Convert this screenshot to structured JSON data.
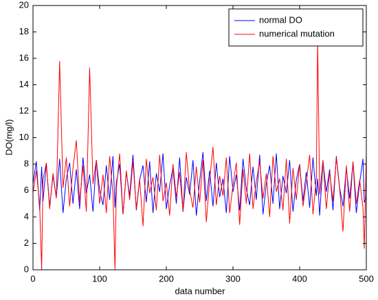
{
  "chart_data": {
    "type": "line",
    "xlabel": "data number",
    "ylabel": "DO(mg/l)",
    "xlim": [
      0,
      500
    ],
    "xticks": [
      0,
      100,
      200,
      300,
      400,
      500
    ],
    "ylim": [
      0,
      20
    ],
    "yticks": [
      0,
      2,
      4,
      6,
      8,
      10,
      12,
      14,
      16,
      18,
      20
    ],
    "legend": "upper right",
    "x": [
      0,
      5,
      10,
      13,
      15,
      20,
      25,
      30,
      35,
      40,
      45,
      50,
      55,
      60,
      65,
      70,
      75,
      80,
      85,
      90,
      95,
      100,
      105,
      110,
      115,
      120,
      123,
      125,
      130,
      135,
      140,
      145,
      150,
      155,
      160,
      165,
      170,
      175,
      180,
      185,
      190,
      195,
      200,
      205,
      210,
      215,
      220,
      225,
      230,
      235,
      240,
      245,
      250,
      255,
      260,
      265,
      270,
      275,
      280,
      285,
      290,
      295,
      300,
      305,
      310,
      315,
      320,
      325,
      330,
      335,
      340,
      345,
      350,
      355,
      360,
      365,
      370,
      375,
      380,
      385,
      390,
      395,
      400,
      405,
      410,
      415,
      420,
      425,
      427,
      430,
      435,
      440,
      445,
      450,
      455,
      460,
      465,
      470,
      475,
      480,
      485,
      490,
      495,
      497,
      500
    ],
    "series": [
      {
        "name": "normal DO",
        "color": "#0000ff",
        "values": [
          6.5,
          8.2,
          4.5,
          7.8,
          5.2,
          8.0,
          4.8,
          7.1,
          5.5,
          8.4,
          4.3,
          6.9,
          8.1,
          5.0,
          7.6,
          4.6,
          8.5,
          5.8,
          7.2,
          4.4,
          8.3,
          6.0,
          4.9,
          7.9,
          5.3,
          8.6,
          4.7,
          6.6,
          8.0,
          4.2,
          7.4,
          5.6,
          8.7,
          4.5,
          6.8,
          7.9,
          5.1,
          8.2,
          4.3,
          7.3,
          5.9,
          8.8,
          4.6,
          6.4,
          7.7,
          5.0,
          8.5,
          4.4,
          7.0,
          5.7,
          8.3,
          4.1,
          6.7,
          8.9,
          5.2,
          7.5,
          4.8,
          8.1,
          5.5,
          6.9,
          4.3,
          8.6,
          5.9,
          7.2,
          4.5,
          8.4,
          6.1,
          4.9,
          7.8,
          5.3,
          8.7,
          4.2,
          6.5,
          7.9,
          5.0,
          8.8,
          4.6,
          7.1,
          5.8,
          8.3,
          4.4,
          6.8,
          8.0,
          5.2,
          7.4,
          4.7,
          8.5,
          5.6,
          6.9,
          4.1,
          8.2,
          5.9,
          7.6,
          4.5,
          8.6,
          6.2,
          4.8,
          7.7,
          5.4,
          8.1,
          4.3,
          6.6,
          8.4,
          5.1,
          5.5
        ]
      },
      {
        "name": "numerical mutation",
        "color": "#ff0000",
        "values": [
          5.8,
          7.5,
          4.9,
          0,
          6.8,
          8.1,
          4.6,
          7.3,
          5.4,
          15.8,
          6.2,
          8.5,
          4.8,
          7.7,
          9.8,
          5.1,
          7.9,
          4.4,
          15.3,
          6.5,
          8.3,
          5.0,
          7.2,
          4.3,
          8.6,
          5.7,
          0,
          6.1,
          8.8,
          4.2,
          7.5,
          5.3,
          8.2,
          4.6,
          6.9,
          3.3,
          8.4,
          5.8,
          7.0,
          4.5,
          8.7,
          5.2,
          6.6,
          4.1,
          8.0,
          5.5,
          7.4,
          4.4,
          8.9,
          6.0,
          4.7,
          7.8,
          5.1,
          8.3,
          3.6,
          6.8,
          9.3,
          4.9,
          7.1,
          5.6,
          8.5,
          4.3,
          6.4,
          8.1,
          3.4,
          7.6,
          5.0,
          8.8,
          4.6,
          6.7,
          8.2,
          5.4,
          7.3,
          4.0,
          8.6,
          5.9,
          6.9,
          4.5,
          8.4,
          3.5,
          7.7,
          5.3,
          8.0,
          4.8,
          6.6,
          8.7,
          4.2,
          7.0,
          17.3,
          5.7,
          8.3,
          4.6,
          7.4,
          5.2,
          8.5,
          6.1,
          2.9,
          7.9,
          4.4,
          8.2,
          5.0,
          6.8,
          4.7,
          1.6,
          8.9
        ]
      }
    ]
  }
}
